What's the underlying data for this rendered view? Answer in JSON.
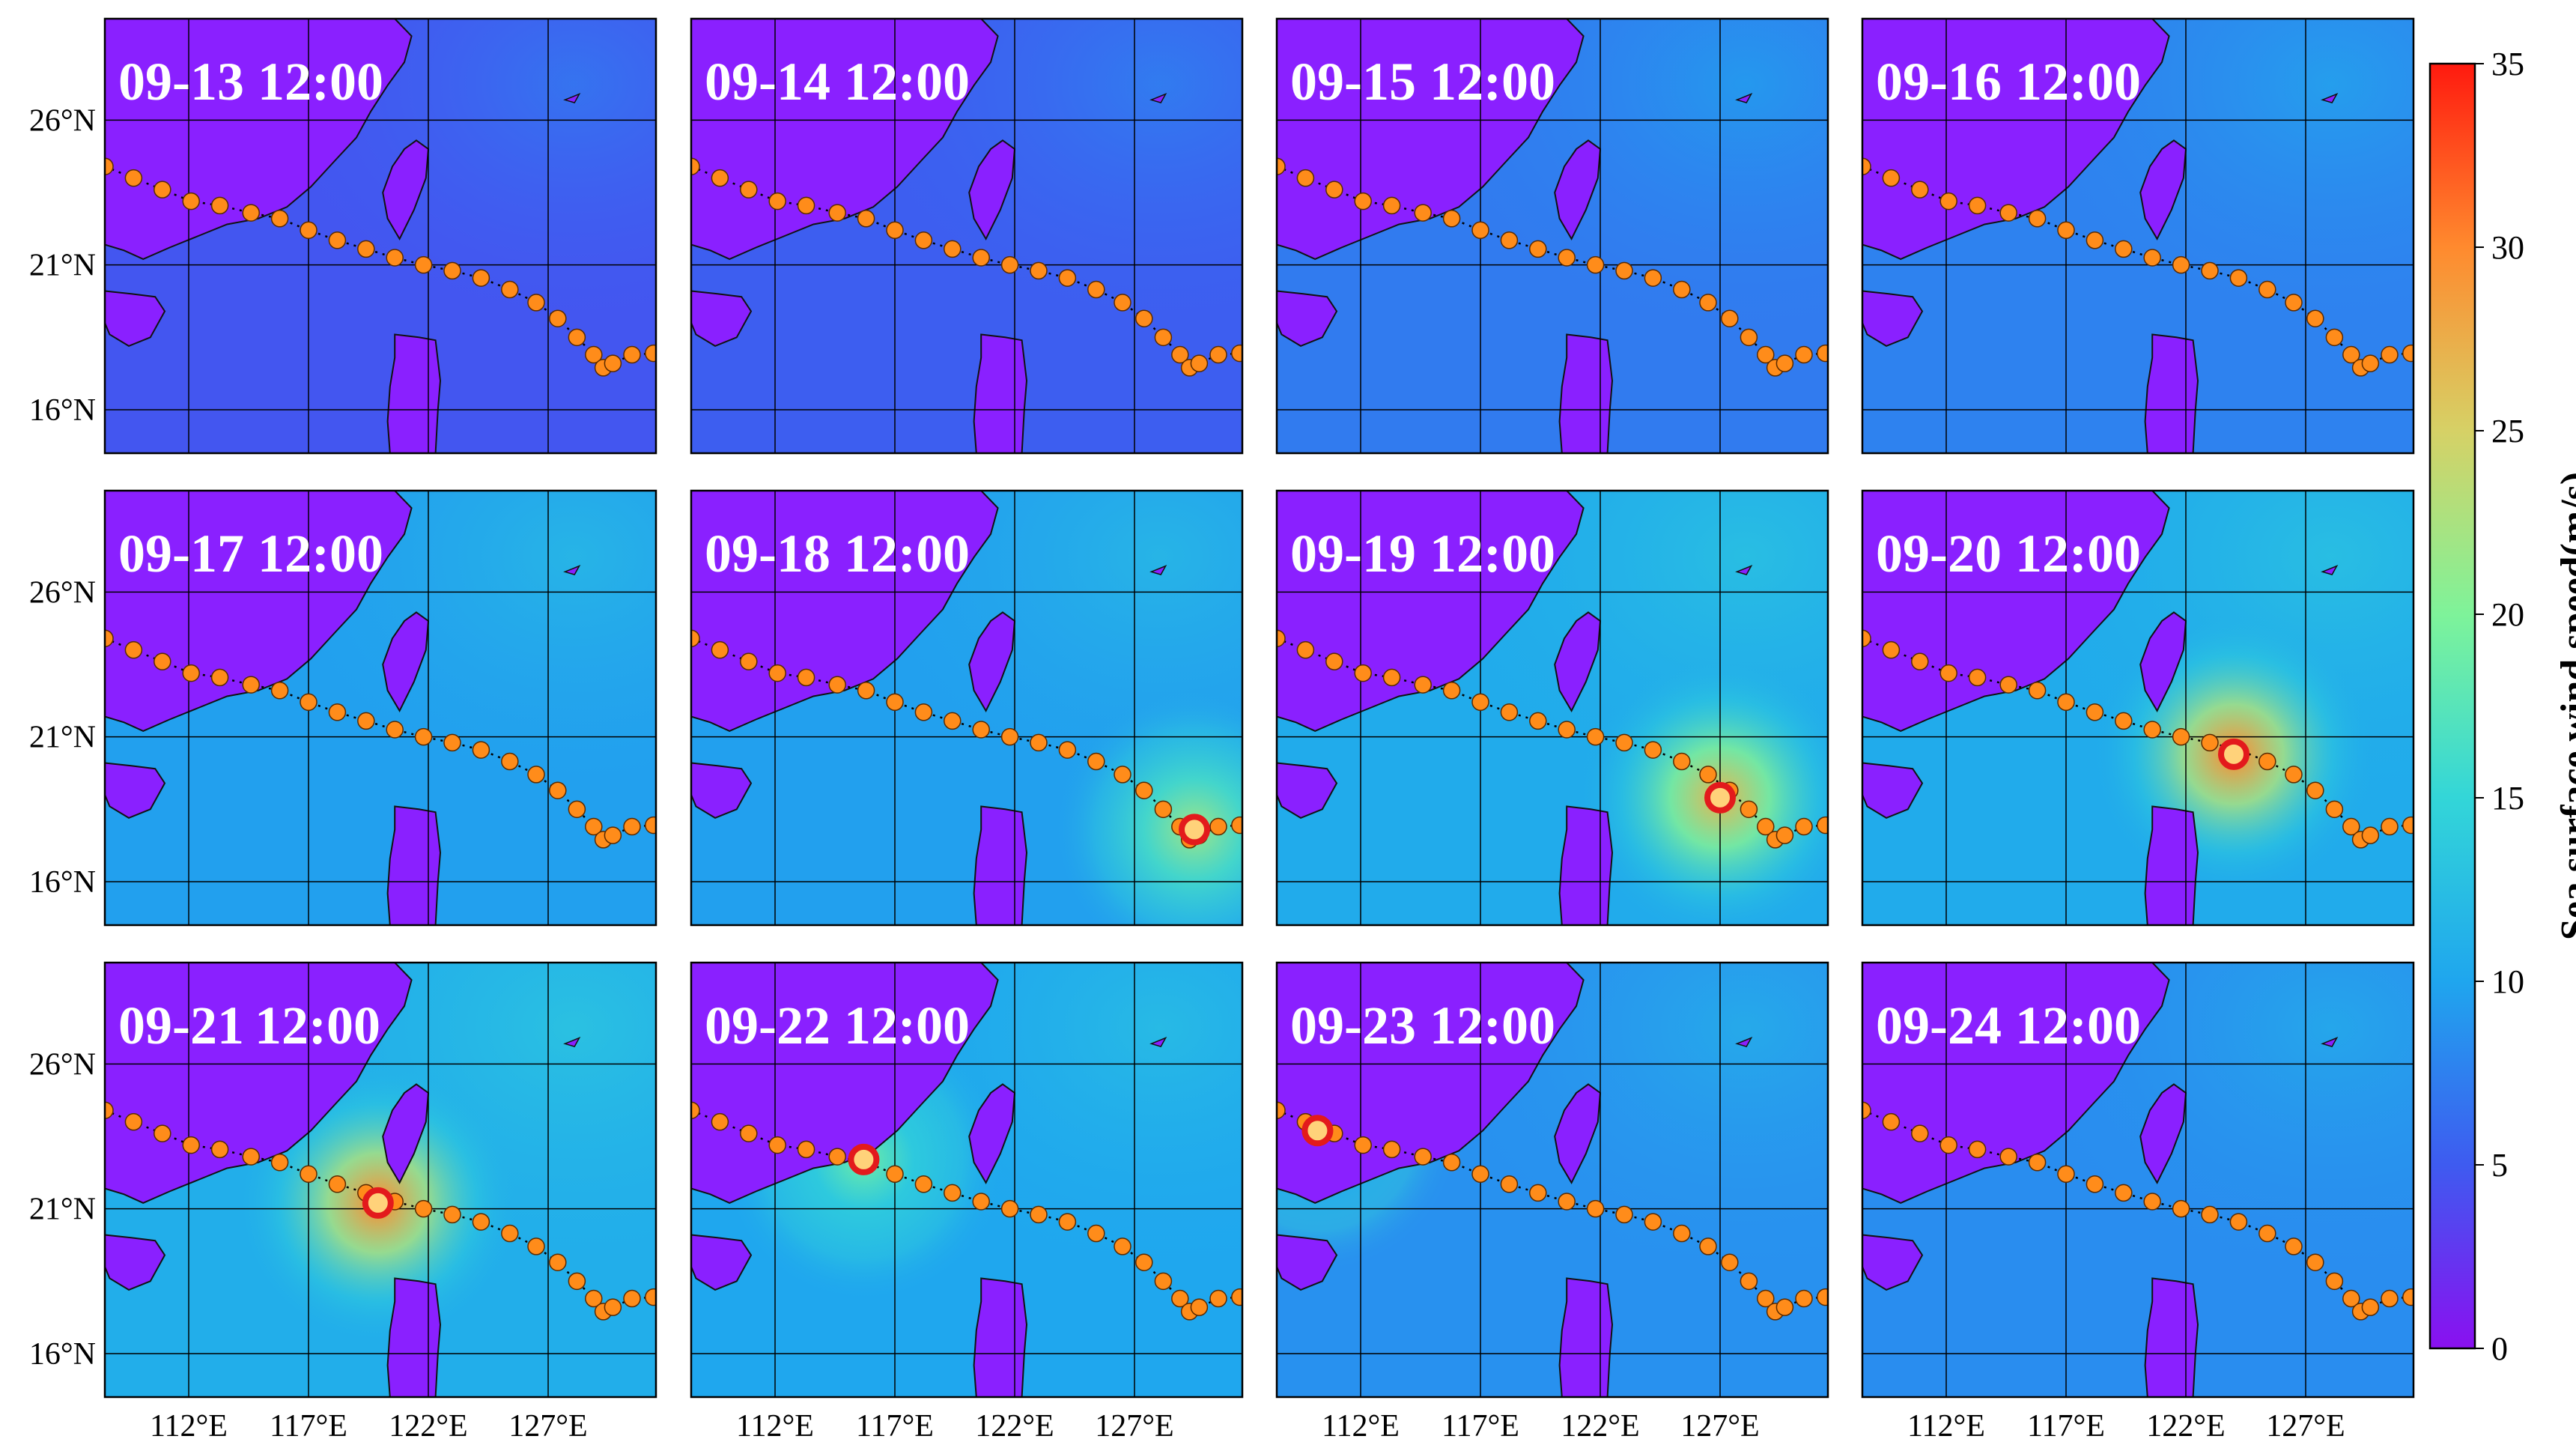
{
  "figure": {
    "panels": [
      {
        "date": "09-13",
        "time": "12:00",
        "level": 0.05,
        "cyclone": null
      },
      {
        "date": "09-14",
        "time": "12:00",
        "level": 0.1,
        "cyclone": null
      },
      {
        "date": "09-15",
        "time": "12:00",
        "level": 0.3,
        "cyclone": null
      },
      {
        "date": "09-16",
        "time": "12:00",
        "level": 0.35,
        "cyclone": null
      },
      {
        "date": "09-17",
        "time": "12:00",
        "level": 0.55,
        "cyclone": null
      },
      {
        "date": "09-18",
        "time": "12:00",
        "level": 0.55,
        "cyclone": {
          "lon": 129.5,
          "lat": 17.8,
          "peak_ms": 22
        }
      },
      {
        "date": "09-19",
        "time": "12:00",
        "level": 0.65,
        "cyclone": {
          "lon": 127.0,
          "lat": 18.9,
          "peak_ms": 27
        }
      },
      {
        "date": "09-20",
        "time": "12:00",
        "level": 0.65,
        "cyclone": {
          "lon": 124.0,
          "lat": 20.4,
          "peak_ms": 30
        }
      },
      {
        "date": "09-21",
        "time": "12:00",
        "level": 0.68,
        "cyclone": {
          "lon": 119.9,
          "lat": 21.2,
          "peak_ms": 30
        }
      },
      {
        "date": "09-22",
        "time": "12:00",
        "level": 0.6,
        "cyclone": {
          "lon": 115.7,
          "lat": 22.7,
          "peak_ms": 19
        }
      },
      {
        "date": "09-23",
        "time": "12:00",
        "level": 0.45,
        "cyclone": {
          "lon": 110.2,
          "lat": 23.7,
          "peak_ms": 14
        }
      },
      {
        "date": "09-24",
        "time": "12:00",
        "level": 0.42,
        "cyclone": null
      }
    ],
    "lon_ticks": [
      "112°E",
      "117°E",
      "122°E",
      "127°E"
    ],
    "lat_ticks": [
      "26°N",
      "21°N",
      "16°N"
    ],
    "lon_range": [
      108.5,
      131.5
    ],
    "lat_range": [
      14.5,
      29.5
    ],
    "track": [
      [
        108.5,
        24.4
      ],
      [
        109.7,
        24.0
      ],
      [
        110.9,
        23.6
      ],
      [
        112.1,
        23.2
      ],
      [
        113.3,
        23.05
      ],
      [
        114.6,
        22.8
      ],
      [
        115.8,
        22.6
      ],
      [
        117.0,
        22.2
      ],
      [
        118.2,
        21.85
      ],
      [
        119.4,
        21.55
      ],
      [
        120.6,
        21.25
      ],
      [
        121.8,
        21.0
      ],
      [
        123.0,
        20.8
      ],
      [
        124.2,
        20.55
      ],
      [
        125.4,
        20.15
      ],
      [
        126.5,
        19.7
      ],
      [
        127.4,
        19.15
      ],
      [
        128.2,
        18.5
      ],
      [
        128.9,
        17.9
      ],
      [
        129.3,
        17.45
      ],
      [
        129.7,
        17.6
      ],
      [
        130.5,
        17.9
      ],
      [
        131.4,
        17.95
      ]
    ],
    "colorbar": {
      "label": "Sea surface wind speed(m/s)",
      "ticks": [
        "35",
        "30",
        "25",
        "20",
        "15",
        "10",
        "5",
        "0"
      ],
      "min": 0,
      "max": 35,
      "colors": [
        "#8a10f0",
        "#3e5bf0",
        "#1fa6ee",
        "#33d6d8",
        "#7ef39a",
        "#d6d166",
        "#ff8a2e",
        "#ff1a0f"
      ]
    },
    "track_marker_color": "#ff8c1a",
    "cyclone_marker_color": "#e31a1c",
    "land_color": "#8a20ff"
  }
}
